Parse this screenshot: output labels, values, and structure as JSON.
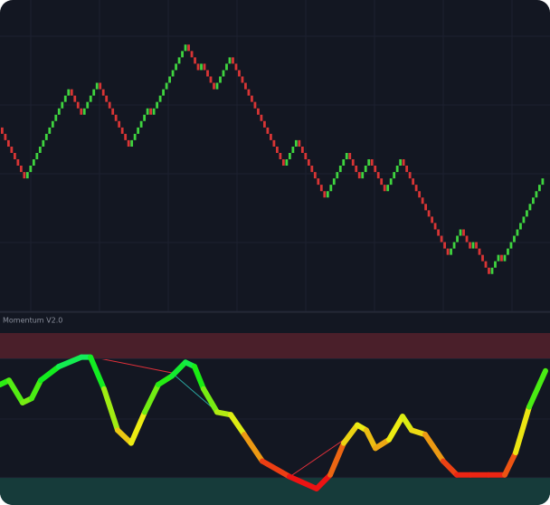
{
  "chart_data": [
    {
      "type": "renko",
      "values": [
        29,
        21,
        35,
        31,
        36,
        26,
        32,
        31,
        42,
        38,
        39,
        35,
        40,
        23,
        27,
        18,
        25,
        21,
        24,
        19,
        24,
        9,
        13,
        10,
        11,
        6,
        9,
        8,
        21
      ],
      "ylim": [
        0,
        49
      ],
      "up_color": "#3fd43f",
      "down_color": "#d83535"
    },
    {
      "type": "ribbon",
      "title": "Momentum V2.0",
      "x": [
        0,
        10,
        25,
        35,
        45,
        65,
        90,
        100,
        115,
        130,
        145,
        160,
        175,
        190,
        205,
        215,
        225,
        240,
        255,
        270,
        290,
        320,
        350,
        365,
        380,
        395,
        405,
        415,
        430,
        445,
        455,
        470,
        490,
        505,
        520,
        540,
        558,
        570,
        585,
        603
      ],
      "values": [
        40,
        45,
        19,
        24,
        45,
        61,
        72,
        72,
        35,
        -13,
        -28,
        8,
        40,
        50,
        66,
        61,
        35,
        8,
        5,
        -18,
        -49,
        -67,
        -81,
        -65,
        -28,
        -7,
        -13,
        -34,
        -24,
        3,
        -13,
        -18,
        -49,
        -65,
        -65,
        -65,
        -65,
        -39,
        14,
        56
      ],
      "xlim": [
        0,
        603
      ],
      "ylim": [
        -100,
        100
      ],
      "zones": [
        {
          "range": [
            70,
            100
          ],
          "color": "#4a1f2a"
        },
        {
          "range": [
            -100,
            -68
          ],
          "color": "#163b3a"
        }
      ],
      "grid": [
        70,
        0,
        -68
      ]
    }
  ]
}
